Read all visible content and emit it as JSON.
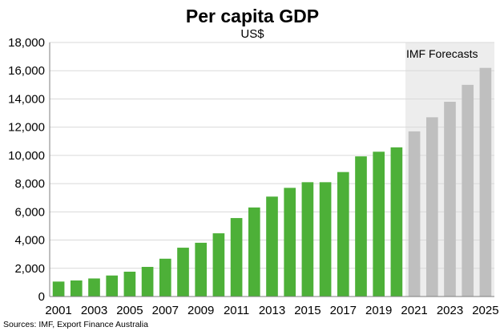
{
  "chart_data": {
    "type": "bar",
    "title": "Per capita GDP",
    "subtitle": "US$",
    "categories": [
      "2001",
      "2002",
      "2003",
      "2004",
      "2005",
      "2006",
      "2007",
      "2008",
      "2009",
      "2010",
      "2011",
      "2012",
      "2013",
      "2014",
      "2015",
      "2016",
      "2017",
      "2018",
      "2019",
      "2020",
      "2021",
      "2022",
      "2023",
      "2024",
      "2025"
    ],
    "tick_labels": [
      "2001",
      "2003",
      "2005",
      "2007",
      "2009",
      "2011",
      "2013",
      "2015",
      "2017",
      "2019",
      "2021",
      "2023",
      "2025"
    ],
    "series": [
      {
        "values": [
          1060,
          1140,
          1280,
          1490,
          1760,
          2100,
          2680,
          3460,
          3810,
          4480,
          5560,
          6310,
          7080,
          7700,
          8100,
          8100,
          8820,
          9930,
          10260,
          10570,
          11700,
          12700,
          13800,
          15000,
          16200
        ]
      }
    ],
    "forecast_start_index": 20,
    "annotation": "IMF Forecasts",
    "source": "Sources: IMF, Export Finance Australia",
    "ylim": [
      0,
      18000
    ],
    "yticks": [
      0,
      2000,
      4000,
      6000,
      8000,
      10000,
      12000,
      14000,
      16000,
      18000
    ],
    "ytick_labels": [
      "0",
      "2,000",
      "4,000",
      "6,000",
      "8,000",
      "10,000",
      "12,000",
      "14,000",
      "16,000",
      "18,000"
    ],
    "grid": true,
    "legend": "none",
    "colors": {
      "actual": "#4DB038",
      "forecast": "#BFBFBF",
      "forecast_band": "#EDEDED",
      "grid": "#D9D9D9",
      "axis": "#7F7F7F"
    }
  }
}
